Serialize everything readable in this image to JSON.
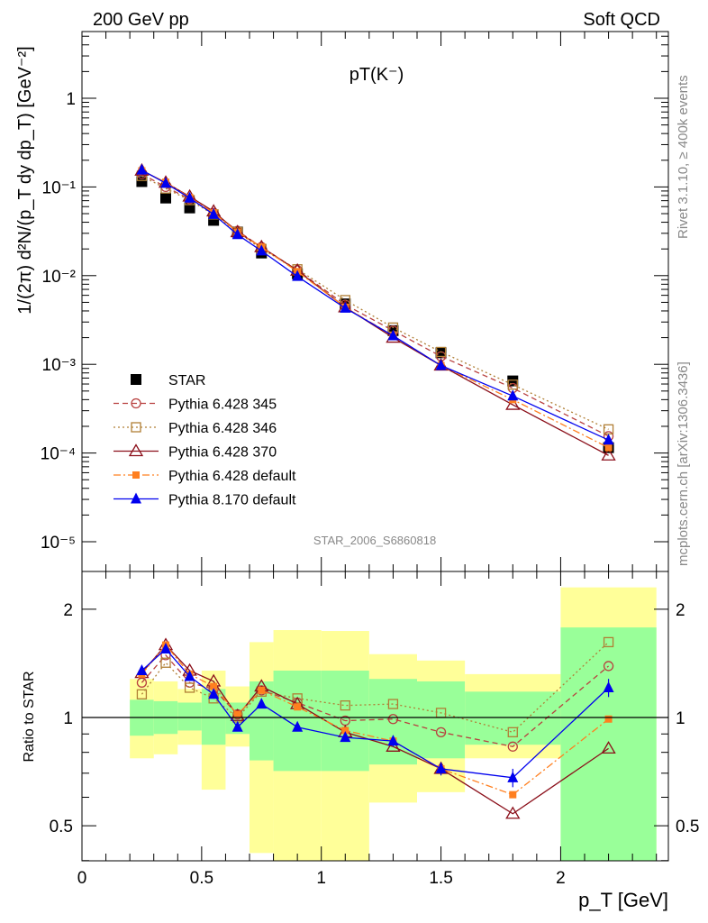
{
  "header": {
    "left": "200 GeV pp",
    "right": "Soft QCD"
  },
  "side_labels": {
    "rivet": "Rivet 3.1.10, ≥ 400k events",
    "mcplots": "mcplots.cern.ch [arXiv:1306.3436]"
  },
  "analysis_id": "STAR_2006_S6860818",
  "colors": {
    "star": "#000000",
    "p345": "#b8403f",
    "p346": "#b07f35",
    "p370": "#8b0f1a",
    "p6def": "#ff7f1f",
    "p8": "#0000ee",
    "band_inner": "#99ff99",
    "band_outer": "#ffff99"
  },
  "chart_data": [
    {
      "type": "scatter",
      "title": "pT(K⁻)",
      "ylabel": "1/(2π) d²N/(p_T dy dp_T) [GeV⁻²]",
      "yscale": "log",
      "ylim": [
        4e-06,
        6
      ],
      "xlim": [
        0,
        2.45
      ],
      "ytick_labels": [
        "10⁻⁵",
        "10⁻⁴",
        "10⁻³",
        "10⁻²",
        "10⁻¹",
        "1"
      ],
      "x": [
        0.25,
        0.35,
        0.45,
        0.55,
        0.65,
        0.75,
        0.9,
        1.1,
        1.3,
        1.5,
        1.8,
        2.2
      ],
      "legend_position": "bottom-left",
      "series": [
        {
          "name": "STAR",
          "key": "star",
          "marker": "square-filled",
          "line": "none",
          "values": [
            0.115,
            0.075,
            0.058,
            0.042,
            0.031,
            0.018,
            0.0105,
            0.0048,
            0.0024,
            0.00135,
            0.00065,
            0.000115
          ]
        },
        {
          "name": "Pythia 6.428 345",
          "key": "p345",
          "marker": "circle-open",
          "line": "dashed",
          "values": [
            0.14,
            0.1,
            0.073,
            0.051,
            0.032,
            0.021,
            0.0115,
            0.0047,
            0.0024,
            0.00123,
            0.00054,
            0.000155
          ]
        },
        {
          "name": "Pythia 6.428 346",
          "key": "p346",
          "marker": "square-open",
          "line": "dotted",
          "values": [
            0.133,
            0.096,
            0.071,
            0.049,
            0.031,
            0.02,
            0.0118,
            0.0053,
            0.0026,
            0.00138,
            0.00059,
            0.000185
          ]
        },
        {
          "name": "Pythia 6.428 370",
          "key": "p370",
          "marker": "triangle-open",
          "line": "solid",
          "values": [
            0.153,
            0.112,
            0.078,
            0.053,
            0.031,
            0.021,
            0.0114,
            0.0044,
            0.002,
            0.00097,
            0.00035,
            9.4e-05
          ]
        },
        {
          "name": "Pythia 6.428 default",
          "key": "p6def",
          "marker": "square-filled-small",
          "line": "dashdot",
          "values": [
            0.152,
            0.113,
            0.076,
            0.051,
            0.031,
            0.021,
            0.0111,
            0.0044,
            0.0021,
            0.00097,
            0.0004,
            0.000115
          ]
        },
        {
          "name": "Pythia 8.170 default",
          "key": "p8",
          "marker": "triangle-filled",
          "line": "solid",
          "values": [
            0.155,
            0.11,
            0.075,
            0.049,
            0.029,
            0.019,
            0.0098,
            0.0043,
            0.0021,
            0.00097,
            0.00044,
            0.00014
          ]
        }
      ]
    },
    {
      "type": "scatter",
      "ylabel": "Ratio to STAR",
      "xlabel": "p_T [GeV]",
      "ylim": [
        0.35,
        2.3
      ],
      "xlim": [
        0,
        2.45
      ],
      "ytick_labels": [
        "0.5",
        "1",
        "2"
      ],
      "xtick_labels": [
        "0",
        "0.5",
        "1",
        "1.5",
        "2"
      ],
      "reference_line": 1,
      "bands": [
        {
          "xlo": 0.2,
          "xhi": 0.3,
          "inner": [
            0.89,
            1.12
          ],
          "outer": [
            0.77,
            1.28
          ]
        },
        {
          "xlo": 0.3,
          "xhi": 0.4,
          "inner": [
            0.9,
            1.11
          ],
          "outer": [
            0.79,
            1.26
          ]
        },
        {
          "xlo": 0.4,
          "xhi": 0.5,
          "inner": [
            0.92,
            1.1
          ],
          "outer": [
            0.84,
            1.2
          ]
        },
        {
          "xlo": 0.5,
          "xhi": 0.6,
          "inner": [
            0.84,
            1.2
          ],
          "outer": [
            0.63,
            1.35
          ]
        },
        {
          "xlo": 0.6,
          "xhi": 0.7,
          "inner": [
            0.9,
            1.1
          ],
          "outer": [
            0.83,
            1.22
          ]
        },
        {
          "xlo": 0.7,
          "xhi": 0.8,
          "inner": [
            0.76,
            1.26
          ],
          "outer": [
            0.42,
            1.62
          ]
        },
        {
          "xlo": 0.8,
          "xhi": 1.0,
          "inner": [
            0.71,
            1.35
          ],
          "outer": [
            0.3,
            1.75
          ]
        },
        {
          "xlo": 1.0,
          "xhi": 1.2,
          "inner": [
            0.71,
            1.35
          ],
          "outer": [
            0.3,
            1.74
          ]
        },
        {
          "xlo": 1.2,
          "xhi": 1.4,
          "inner": [
            0.74,
            1.28
          ],
          "outer": [
            0.58,
            1.5
          ]
        },
        {
          "xlo": 1.4,
          "xhi": 1.6,
          "inner": [
            0.77,
            1.26
          ],
          "outer": [
            0.62,
            1.44
          ]
        },
        {
          "xlo": 1.6,
          "xhi": 2.0,
          "inner": [
            0.84,
            1.18
          ],
          "outer": [
            0.77,
            1.32
          ]
        },
        {
          "xlo": 2.0,
          "xhi": 2.4,
          "inner": [
            0.3,
            1.78
          ],
          "outer": [
            0.3,
            2.3
          ]
        }
      ],
      "x": [
        0.25,
        0.35,
        0.45,
        0.55,
        0.65,
        0.75,
        0.9,
        1.1,
        1.3,
        1.5,
        1.8,
        2.2
      ],
      "series": [
        {
          "key": "p345",
          "values": [
            1.25,
            1.49,
            1.25,
            1.2,
            1.02,
            1.19,
            1.1,
            0.98,
            0.99,
            0.91,
            0.83,
            1.39
          ]
        },
        {
          "key": "p346",
          "values": [
            1.16,
            1.42,
            1.21,
            1.13,
            1.0,
            1.18,
            1.13,
            1.08,
            1.09,
            1.03,
            0.91,
            1.62
          ]
        },
        {
          "key": "p370",
          "values": [
            1.33,
            1.59,
            1.35,
            1.26,
            1.01,
            1.22,
            1.09,
            0.91,
            0.83,
            0.72,
            0.54,
            0.82
          ]
        },
        {
          "key": "p6def",
          "values": [
            1.32,
            1.59,
            1.32,
            1.22,
            1.02,
            1.19,
            1.07,
            0.92,
            0.86,
            0.72,
            0.61,
            0.99
          ]
        },
        {
          "key": "p8",
          "values": [
            1.35,
            1.55,
            1.3,
            1.16,
            0.94,
            1.09,
            0.94,
            0.88,
            0.86,
            0.72,
            0.68,
            1.21
          ]
        }
      ],
      "p8_errors": [
        0.02,
        0.02,
        0.02,
        0.02,
        0.02,
        0.02,
        0.015,
        0.02,
        0.03,
        0.03,
        0.04,
        0.07
      ]
    }
  ]
}
